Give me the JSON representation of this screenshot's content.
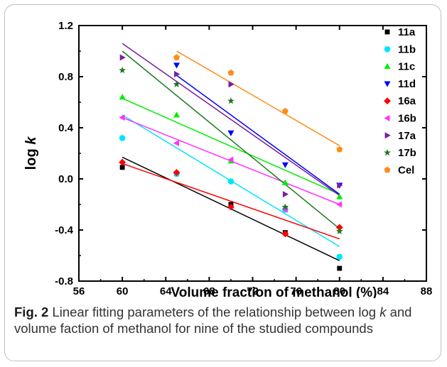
{
  "chart_data": {
    "type": "scatter",
    "xlabel": "Volume fraction of methanol (%)",
    "ylabel_main": "log ",
    "ylabel_italic": "k",
    "xlim": [
      56,
      88
    ],
    "ylim": [
      -0.8,
      1.2
    ],
    "xticks": [
      56,
      60,
      64,
      68,
      72,
      76,
      80,
      84,
      88
    ],
    "yticks": [
      -0.8,
      -0.4,
      0.0,
      0.4,
      0.8,
      1.2
    ],
    "xtick_labels": [
      "56",
      "60",
      "64",
      "68",
      "72",
      "76",
      "80",
      "84",
      "88"
    ],
    "ytick_labels": [
      "-0.8",
      "-0.4",
      "0.0",
      "0.4",
      "0.8",
      "1.2"
    ],
    "legend_position": "top-right",
    "series": [
      {
        "name": "11a",
        "color": "#000000",
        "marker": "square",
        "x": [
          60,
          65,
          70,
          75,
          80
        ],
        "y": [
          0.09,
          0.04,
          -0.2,
          -0.42,
          -0.7
        ],
        "fit": [
          [
            60,
            0.17
          ],
          [
            80,
            -0.64
          ]
        ]
      },
      {
        "name": "11b",
        "color": "#00e5ff",
        "marker": "circle",
        "x": [
          60,
          65,
          70,
          75,
          80
        ],
        "y": [
          0.32,
          0.04,
          -0.02,
          -0.24,
          -0.61
        ],
        "fit": [
          [
            60,
            0.5
          ],
          [
            80,
            -0.53
          ]
        ]
      },
      {
        "name": "11c",
        "color": "#00ee00",
        "marker": "triangle-up",
        "x": [
          60,
          65,
          70,
          75,
          80
        ],
        "y": [
          0.64,
          0.5,
          0.14,
          -0.03,
          -0.14
        ],
        "fit": [
          [
            60,
            0.63
          ],
          [
            80,
            -0.12
          ]
        ]
      },
      {
        "name": "11d",
        "color": "#0000ff",
        "marker": "triangle-down",
        "x": [
          65,
          70,
          75,
          80
        ],
        "y": [
          0.89,
          0.36,
          0.11,
          -0.05
        ],
        "fit": [
          [
            65,
            0.81
          ],
          [
            80,
            -0.12
          ]
        ]
      },
      {
        "name": "16a",
        "color": "#ff0000",
        "marker": "diamond",
        "x": [
          60,
          65,
          70,
          75,
          80
        ],
        "y": [
          0.13,
          0.05,
          -0.22,
          -0.43,
          -0.38
        ],
        "fit": [
          [
            60,
            0.12
          ],
          [
            80,
            -0.47
          ]
        ]
      },
      {
        "name": "16b",
        "color": "#ff33ff",
        "marker": "triangle-left",
        "x": [
          60,
          65,
          70,
          75,
          80
        ],
        "y": [
          0.48,
          0.28,
          0.15,
          -0.24,
          -0.2
        ],
        "fit": [
          [
            60,
            0.48
          ],
          [
            80,
            -0.2
          ]
        ]
      },
      {
        "name": "17a",
        "color": "#7a1ea0",
        "marker": "triangle-right",
        "x": [
          60,
          65,
          70,
          75,
          80
        ],
        "y": [
          0.95,
          0.82,
          0.74,
          -0.12,
          -0.05
        ],
        "fit": [
          [
            60,
            1.06
          ],
          [
            80,
            -0.13
          ]
        ]
      },
      {
        "name": "17b",
        "color": "#1e7a1e",
        "marker": "star",
        "x": [
          60,
          65,
          70,
          75,
          80
        ],
        "y": [
          0.85,
          0.74,
          0.61,
          -0.22,
          -0.41
        ],
        "fit": [
          [
            60,
            1.0
          ],
          [
            80,
            -0.39
          ]
        ]
      },
      {
        "name": "Cel",
        "color": "#ff8c1a",
        "marker": "pentagon",
        "x": [
          65,
          70,
          75,
          80
        ],
        "y": [
          0.95,
          0.83,
          0.53,
          0.23
        ],
        "fit": [
          [
            65,
            1.0
          ],
          [
            80,
            0.26
          ]
        ]
      }
    ]
  },
  "caption": {
    "label": "Fig. 2",
    "text_1": "  Linear fitting parameters of the relationship between log ",
    "text_k": "k",
    "text_2": " and volume faction of methanol for nine of the studied compounds"
  }
}
